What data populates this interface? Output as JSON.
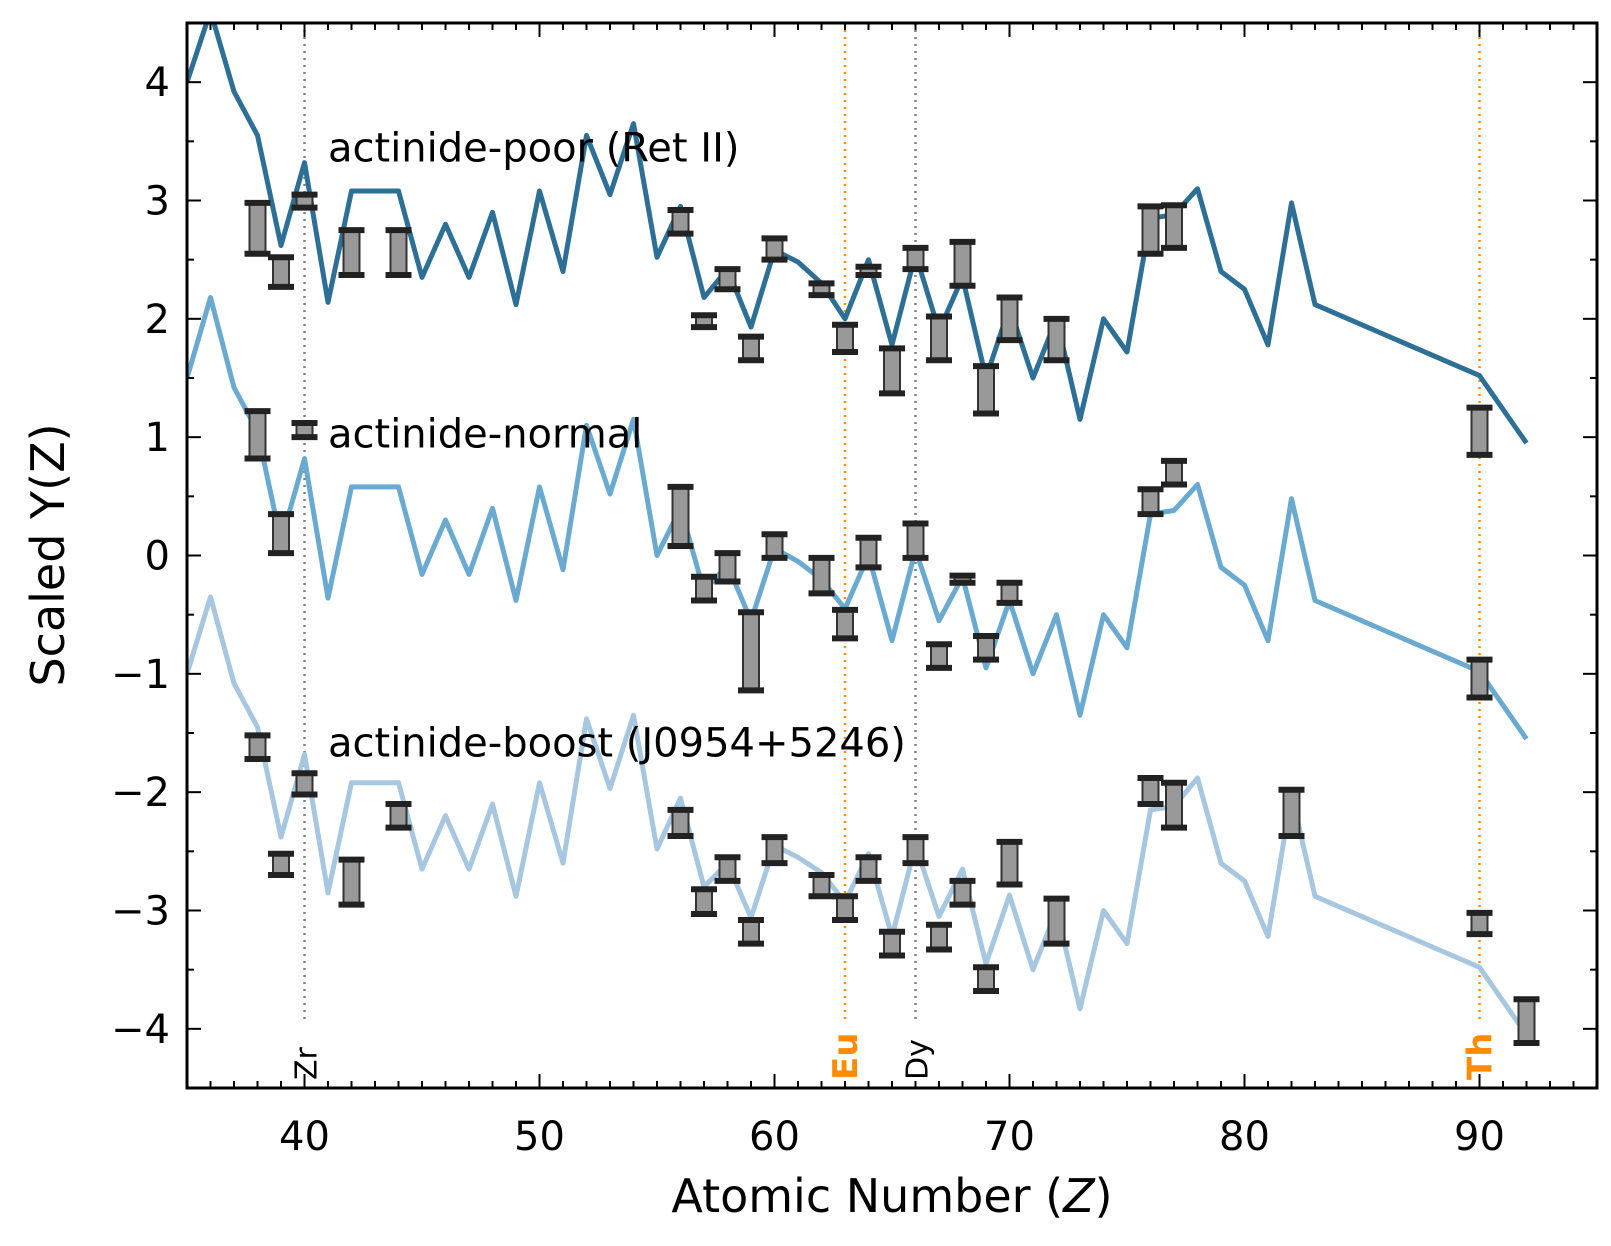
{
  "chart_data": {
    "type": "line",
    "xlabel_main": "Atomic Number (",
    "xlabel_var": "Z",
    "xlabel_end": ")",
    "ylabel": "Scaled Y(Z)",
    "xlim": [
      35,
      95
    ],
    "ylim": [
      -4.5,
      4.5
    ],
    "xticks": [
      40,
      50,
      60,
      70,
      80,
      90
    ],
    "yticks": [
      -4,
      -3,
      -2,
      -1,
      0,
      1,
      2,
      3,
      4
    ],
    "ytick_labels": [
      "−4",
      "−3",
      "−2",
      "−1",
      "0",
      "1",
      "2",
      "3",
      "4"
    ],
    "grid": false,
    "reference_lines": [
      {
        "label": "Zr",
        "x": 40,
        "color": "#808080",
        "bold": false
      },
      {
        "label": "Eu",
        "x": 63,
        "color": "#ff8c00",
        "bold": true
      },
      {
        "label": "Dy",
        "x": 66,
        "color": "#808080",
        "bold": false
      },
      {
        "label": "Th",
        "x": 90,
        "color": "#ff8c00",
        "bold": true
      }
    ],
    "series": [
      {
        "name": "actinide-poor (Ret II)",
        "label_x": 41,
        "label_y": 3.45,
        "color": "#2e6f96",
        "x": [
          35,
          36,
          37,
          38,
          39,
          40,
          41,
          42,
          43,
          44,
          45,
          46,
          47,
          48,
          49,
          50,
          51,
          52,
          53,
          54,
          55,
          56,
          57,
          58,
          59,
          60,
          61,
          62,
          63,
          64,
          65,
          66,
          67,
          68,
          69,
          70,
          71,
          72,
          73,
          74,
          75,
          76,
          77,
          78,
          79,
          80,
          81,
          82,
          83,
          90,
          92
        ],
        "y": [
          4.0,
          4.6,
          3.92,
          3.55,
          2.62,
          3.32,
          2.14,
          3.08,
          3.08,
          3.08,
          2.35,
          2.8,
          2.35,
          2.9,
          2.12,
          3.08,
          2.4,
          3.55,
          3.05,
          3.65,
          2.52,
          2.95,
          2.18,
          2.42,
          1.93,
          2.58,
          2.48,
          2.3,
          2.0,
          2.5,
          1.78,
          2.55,
          1.9,
          2.35,
          1.5,
          2.1,
          1.5,
          2.0,
          1.15,
          2.0,
          1.72,
          2.85,
          2.88,
          3.1,
          2.4,
          2.25,
          1.78,
          2.98,
          2.12,
          1.52,
          0.95
        ],
        "points": [
          {
            "x": 38,
            "lo": 2.55,
            "hi": 2.98
          },
          {
            "x": 39,
            "lo": 2.27,
            "hi": 2.52
          },
          {
            "x": 40,
            "lo": 2.94,
            "hi": 3.05
          },
          {
            "x": 42,
            "lo": 2.37,
            "hi": 2.75
          },
          {
            "x": 44,
            "lo": 2.37,
            "hi": 2.75
          },
          {
            "x": 56,
            "lo": 2.72,
            "hi": 2.92
          },
          {
            "x": 57,
            "lo": 1.93,
            "hi": 2.03
          },
          {
            "x": 58,
            "lo": 2.25,
            "hi": 2.42
          },
          {
            "x": 59,
            "lo": 1.65,
            "hi": 1.85
          },
          {
            "x": 60,
            "lo": 2.5,
            "hi": 2.68
          },
          {
            "x": 62,
            "lo": 2.2,
            "hi": 2.3
          },
          {
            "x": 63,
            "lo": 1.72,
            "hi": 1.95
          },
          {
            "x": 64,
            "lo": 2.37,
            "hi": 2.44
          },
          {
            "x": 65,
            "lo": 1.37,
            "hi": 1.75
          },
          {
            "x": 66,
            "lo": 2.42,
            "hi": 2.6
          },
          {
            "x": 67,
            "lo": 1.65,
            "hi": 2.02
          },
          {
            "x": 68,
            "lo": 2.28,
            "hi": 2.65
          },
          {
            "x": 69,
            "lo": 1.2,
            "hi": 1.6
          },
          {
            "x": 70,
            "lo": 1.82,
            "hi": 2.18
          },
          {
            "x": 72,
            "lo": 1.65,
            "hi": 2.0
          },
          {
            "x": 76,
            "lo": 2.55,
            "hi": 2.95
          },
          {
            "x": 77,
            "lo": 2.6,
            "hi": 2.96
          },
          {
            "x": 90,
            "lo": 0.85,
            "hi": 1.25
          }
        ]
      },
      {
        "name": "actinide-normal",
        "label_x": 41,
        "label_y": 1.03,
        "color": "#6aaad0",
        "x": [
          35,
          36,
          37,
          38,
          39,
          40,
          41,
          42,
          43,
          44,
          45,
          46,
          47,
          48,
          49,
          50,
          51,
          52,
          53,
          54,
          55,
          56,
          57,
          58,
          59,
          60,
          61,
          62,
          63,
          64,
          65,
          66,
          67,
          68,
          69,
          70,
          71,
          72,
          73,
          74,
          75,
          76,
          77,
          78,
          79,
          80,
          81,
          82,
          83,
          90,
          92
        ],
        "y": [
          1.5,
          2.18,
          1.42,
          1.05,
          0.12,
          0.82,
          -0.36,
          0.58,
          0.58,
          0.58,
          -0.16,
          0.3,
          -0.16,
          0.4,
          -0.38,
          0.58,
          -0.12,
          1.1,
          0.52,
          1.15,
          0.0,
          0.4,
          -0.3,
          -0.08,
          -0.55,
          0.06,
          -0.05,
          -0.2,
          -0.45,
          0.0,
          -0.72,
          0.05,
          -0.55,
          -0.18,
          -0.95,
          -0.38,
          -1.0,
          -0.5,
          -1.35,
          -0.5,
          -0.78,
          0.35,
          0.38,
          0.6,
          -0.1,
          -0.25,
          -0.72,
          0.48,
          -0.38,
          -0.98,
          -1.55
        ],
        "points": [
          {
            "x": 38,
            "lo": 0.82,
            "hi": 1.22
          },
          {
            "x": 39,
            "lo": 0.02,
            "hi": 0.35
          },
          {
            "x": 40,
            "lo": 1.0,
            "hi": 1.12
          },
          {
            "x": 56,
            "lo": 0.08,
            "hi": 0.58
          },
          {
            "x": 57,
            "lo": -0.38,
            "hi": -0.18
          },
          {
            "x": 58,
            "lo": -0.22,
            "hi": 0.02
          },
          {
            "x": 59,
            "lo": -1.14,
            "hi": -0.48
          },
          {
            "x": 60,
            "lo": -0.02,
            "hi": 0.18
          },
          {
            "x": 62,
            "lo": -0.32,
            "hi": -0.02
          },
          {
            "x": 63,
            "lo": -0.7,
            "hi": -0.46
          },
          {
            "x": 64,
            "lo": -0.1,
            "hi": 0.15
          },
          {
            "x": 66,
            "lo": -0.02,
            "hi": 0.27
          },
          {
            "x": 67,
            "lo": -0.95,
            "hi": -0.75
          },
          {
            "x": 68,
            "lo": -0.23,
            "hi": -0.17
          },
          {
            "x": 69,
            "lo": -0.88,
            "hi": -0.68
          },
          {
            "x": 70,
            "lo": -0.4,
            "hi": -0.23
          },
          {
            "x": 76,
            "lo": 0.35,
            "hi": 0.56
          },
          {
            "x": 77,
            "lo": 0.6,
            "hi": 0.8
          },
          {
            "x": 90,
            "lo": -1.2,
            "hi": -0.88
          }
        ]
      },
      {
        "name": "actinide-boost (J0954+5246)",
        "label_x": 41,
        "label_y": -1.58,
        "color": "#a7c6df",
        "x": [
          35,
          36,
          37,
          38,
          39,
          40,
          41,
          42,
          43,
          44,
          45,
          46,
          47,
          48,
          49,
          50,
          51,
          52,
          53,
          54,
          55,
          56,
          57,
          58,
          59,
          60,
          61,
          62,
          63,
          64,
          65,
          66,
          67,
          68,
          69,
          70,
          71,
          72,
          73,
          74,
          75,
          76,
          77,
          78,
          79,
          80,
          81,
          82,
          83,
          90,
          92
        ],
        "y": [
          -1.0,
          -0.35,
          -1.08,
          -1.45,
          -2.38,
          -1.68,
          -2.85,
          -1.92,
          -1.92,
          -1.92,
          -2.65,
          -2.2,
          -2.65,
          -2.1,
          -2.88,
          -1.92,
          -2.6,
          -1.38,
          -1.97,
          -1.35,
          -2.48,
          -2.05,
          -2.8,
          -2.6,
          -3.06,
          -2.45,
          -2.55,
          -2.68,
          -2.93,
          -2.52,
          -3.22,
          -2.45,
          -3.05,
          -2.65,
          -3.45,
          -2.87,
          -3.5,
          -3.0,
          -3.83,
          -3.0,
          -3.28,
          -2.15,
          -2.12,
          -1.88,
          -2.6,
          -2.75,
          -3.22,
          -2.02,
          -2.88,
          -3.48,
          -4.05
        ],
        "points": [
          {
            "x": 38,
            "lo": -1.72,
            "hi": -1.52
          },
          {
            "x": 39,
            "lo": -2.7,
            "hi": -2.52
          },
          {
            "x": 40,
            "lo": -2.02,
            "hi": -1.84
          },
          {
            "x": 42,
            "lo": -2.95,
            "hi": -2.57
          },
          {
            "x": 44,
            "lo": -2.3,
            "hi": -2.1
          },
          {
            "x": 56,
            "lo": -2.37,
            "hi": -2.15
          },
          {
            "x": 57,
            "lo": -3.03,
            "hi": -2.82
          },
          {
            "x": 58,
            "lo": -2.75,
            "hi": -2.55
          },
          {
            "x": 59,
            "lo": -3.28,
            "hi": -3.08
          },
          {
            "x": 60,
            "lo": -2.6,
            "hi": -2.38
          },
          {
            "x": 62,
            "lo": -2.88,
            "hi": -2.7
          },
          {
            "x": 63,
            "lo": -3.08,
            "hi": -2.88
          },
          {
            "x": 64,
            "lo": -2.75,
            "hi": -2.55
          },
          {
            "x": 65,
            "lo": -3.38,
            "hi": -3.18
          },
          {
            "x": 66,
            "lo": -2.6,
            "hi": -2.38
          },
          {
            "x": 67,
            "lo": -3.33,
            "hi": -3.12
          },
          {
            "x": 68,
            "lo": -2.95,
            "hi": -2.75
          },
          {
            "x": 69,
            "lo": -3.68,
            "hi": -3.48
          },
          {
            "x": 70,
            "lo": -2.78,
            "hi": -2.42
          },
          {
            "x": 72,
            "lo": -3.28,
            "hi": -2.9
          },
          {
            "x": 76,
            "lo": -2.1,
            "hi": -1.88
          },
          {
            "x": 77,
            "lo": -2.3,
            "hi": -1.92
          },
          {
            "x": 82,
            "lo": -2.37,
            "hi": -1.98
          },
          {
            "x": 90,
            "lo": -3.2,
            "hi": -3.02
          },
          {
            "x": 92,
            "lo": -4.12,
            "hi": -3.75
          }
        ]
      }
    ]
  }
}
